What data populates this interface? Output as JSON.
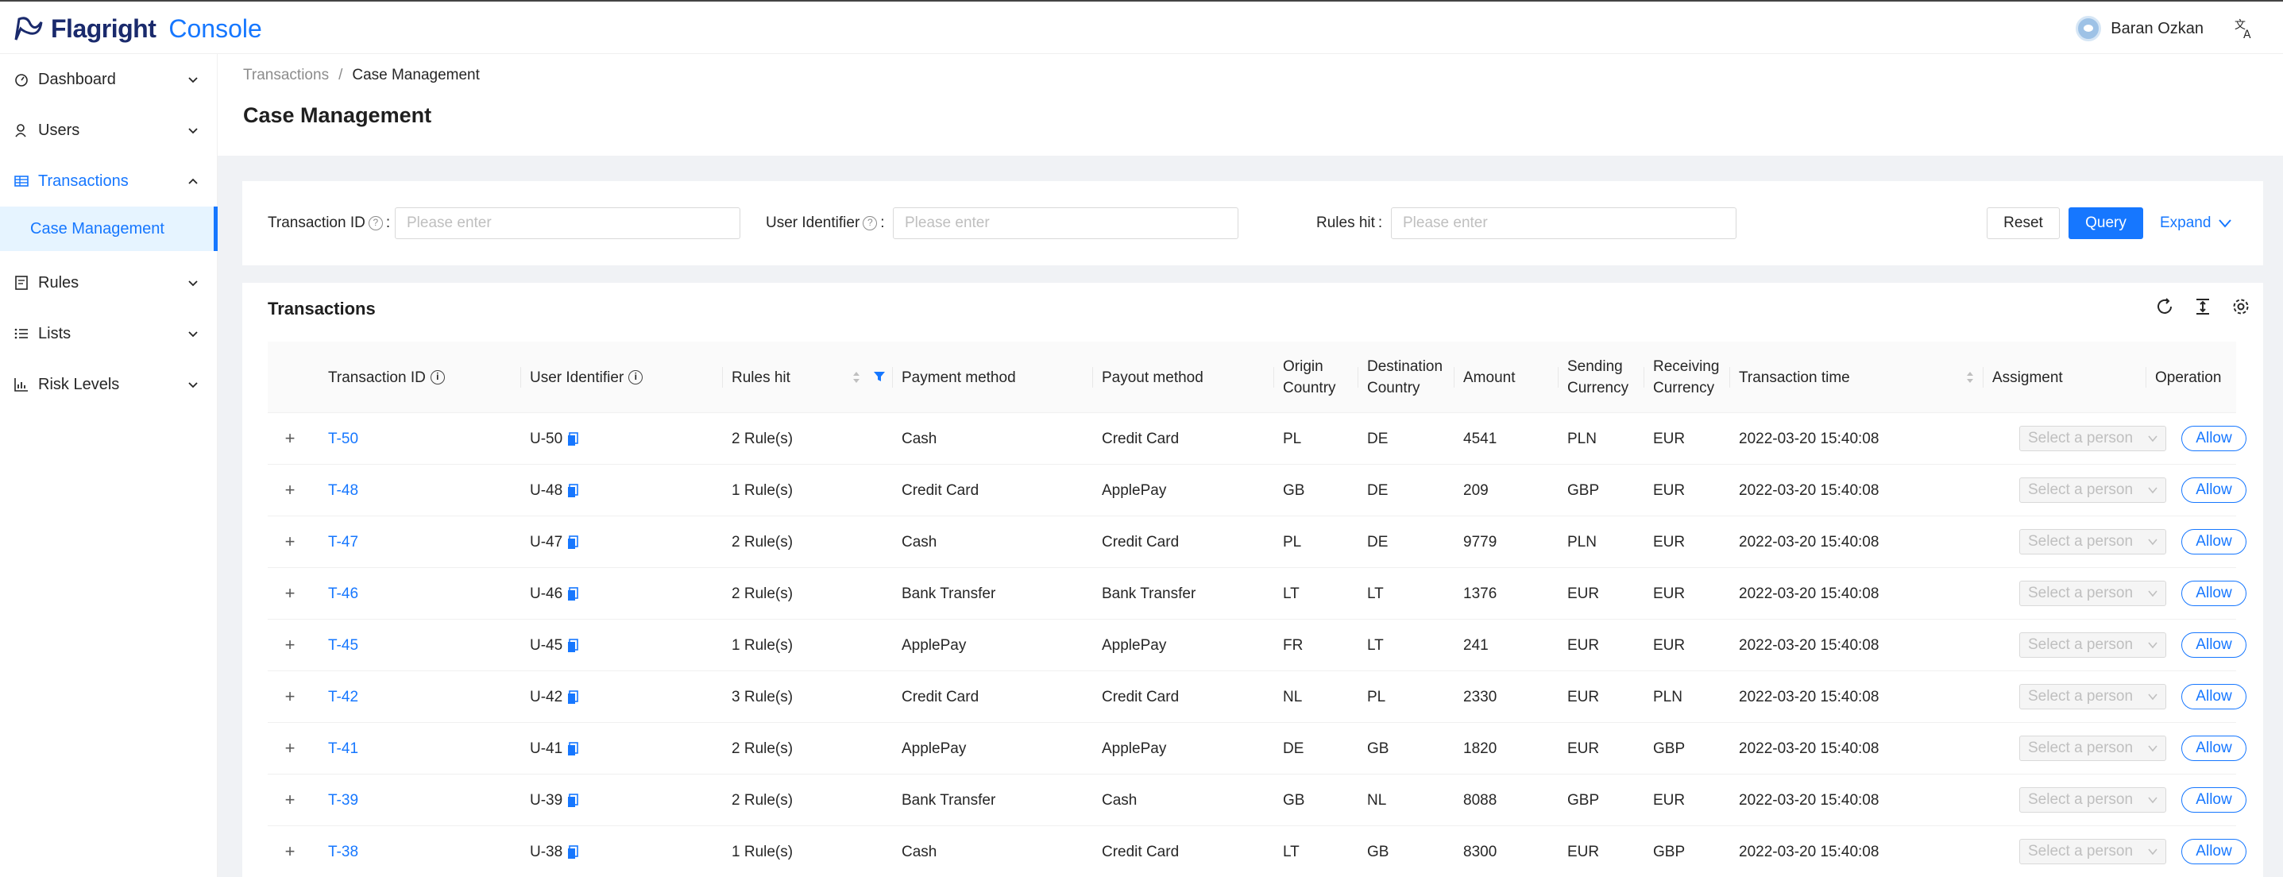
{
  "app": {
    "brand": "Flagright",
    "brand_suffix": "Console"
  },
  "header": {
    "user_name": "Baran Ozkan"
  },
  "sidebar": {
    "items": [
      {
        "label": "Dashboard",
        "icon": "dashboard-icon"
      },
      {
        "label": "Users",
        "icon": "users-icon"
      },
      {
        "label": "Transactions",
        "icon": "table-icon",
        "open": true
      },
      {
        "label": "Case Management",
        "sub": true
      },
      {
        "label": "Rules",
        "icon": "rules-icon"
      },
      {
        "label": "Lists",
        "icon": "list-icon"
      },
      {
        "label": "Risk Levels",
        "icon": "chart-icon"
      }
    ]
  },
  "breadcrumb": {
    "parent": "Transactions",
    "separator": "/",
    "current": "Case Management"
  },
  "page": {
    "title": "Case Management"
  },
  "search": {
    "transaction_id_label": "Transaction ID",
    "transaction_id_placeholder": "Please enter",
    "user_identifier_label": "User Identifier",
    "user_identifier_placeholder": "Please enter",
    "rules_hit_label": "Rules hit",
    "rules_hit_placeholder": "Please enter",
    "colon": ":",
    "reset_label": "Reset",
    "query_label": "Query",
    "expand_label": "Expand"
  },
  "table": {
    "title": "Transactions",
    "columns": {
      "transaction_id": "Transaction ID",
      "user_identifier": "User Identifier",
      "rules_hit": "Rules hit",
      "payment_method": "Payment method",
      "payout_method": "Payout method",
      "origin_country_1": "Origin",
      "origin_country_2": "Country",
      "destination_country_1": "Destination",
      "destination_country_2": "Country",
      "amount": "Amount",
      "sending_currency_1": "Sending",
      "sending_currency_2": "Currency",
      "receiving_currency_1": "Receiving",
      "receiving_currency_2": "Currency",
      "transaction_time": "Transaction time",
      "assignment": "Assigment",
      "operation": "Operation"
    },
    "select_placeholder": "Select a person",
    "allow_label": "Allow",
    "rows": [
      {
        "tid": "T-50",
        "uid": "U-50",
        "rules": "2 Rule(s)",
        "payment": "Cash",
        "payout": "Credit Card",
        "origin": "PL",
        "dest": "DE",
        "amount": "4541",
        "send": "PLN",
        "recv": "EUR",
        "time": "2022-03-20 15:40:08"
      },
      {
        "tid": "T-48",
        "uid": "U-48",
        "rules": "1 Rule(s)",
        "payment": "Credit Card",
        "payout": "ApplePay",
        "origin": "GB",
        "dest": "DE",
        "amount": "209",
        "send": "GBP",
        "recv": "EUR",
        "time": "2022-03-20 15:40:08"
      },
      {
        "tid": "T-47",
        "uid": "U-47",
        "rules": "2 Rule(s)",
        "payment": "Cash",
        "payout": "Credit Card",
        "origin": "PL",
        "dest": "DE",
        "amount": "9779",
        "send": "PLN",
        "recv": "EUR",
        "time": "2022-03-20 15:40:08"
      },
      {
        "tid": "T-46",
        "uid": "U-46",
        "rules": "2 Rule(s)",
        "payment": "Bank Transfer",
        "payout": "Bank Transfer",
        "origin": "LT",
        "dest": "LT",
        "amount": "1376",
        "send": "EUR",
        "recv": "EUR",
        "time": "2022-03-20 15:40:08"
      },
      {
        "tid": "T-45",
        "uid": "U-45",
        "rules": "1 Rule(s)",
        "payment": "ApplePay",
        "payout": "ApplePay",
        "origin": "FR",
        "dest": "LT",
        "amount": "241",
        "send": "EUR",
        "recv": "EUR",
        "time": "2022-03-20 15:40:08"
      },
      {
        "tid": "T-42",
        "uid": "U-42",
        "rules": "3 Rule(s)",
        "payment": "Credit Card",
        "payout": "Credit Card",
        "origin": "NL",
        "dest": "PL",
        "amount": "2330",
        "send": "EUR",
        "recv": "PLN",
        "time": "2022-03-20 15:40:08"
      },
      {
        "tid": "T-41",
        "uid": "U-41",
        "rules": "2 Rule(s)",
        "payment": "ApplePay",
        "payout": "ApplePay",
        "origin": "DE",
        "dest": "GB",
        "amount": "1820",
        "send": "EUR",
        "recv": "GBP",
        "time": "2022-03-20 15:40:08"
      },
      {
        "tid": "T-39",
        "uid": "U-39",
        "rules": "2 Rule(s)",
        "payment": "Bank Transfer",
        "payout": "Cash",
        "origin": "GB",
        "dest": "NL",
        "amount": "8088",
        "send": "GBP",
        "recv": "EUR",
        "time": "2022-03-20 15:40:08"
      },
      {
        "tid": "T-38",
        "uid": "U-38",
        "rules": "1 Rule(s)",
        "payment": "Cash",
        "payout": "Credit Card",
        "origin": "LT",
        "dest": "GB",
        "amount": "8300",
        "send": "EUR",
        "recv": "GBP",
        "time": "2022-03-20 15:40:08"
      }
    ]
  },
  "colors": {
    "accent": "#1677ff",
    "page_bg": "#f0f2f5",
    "selected_bg": "#e6f4ff"
  }
}
